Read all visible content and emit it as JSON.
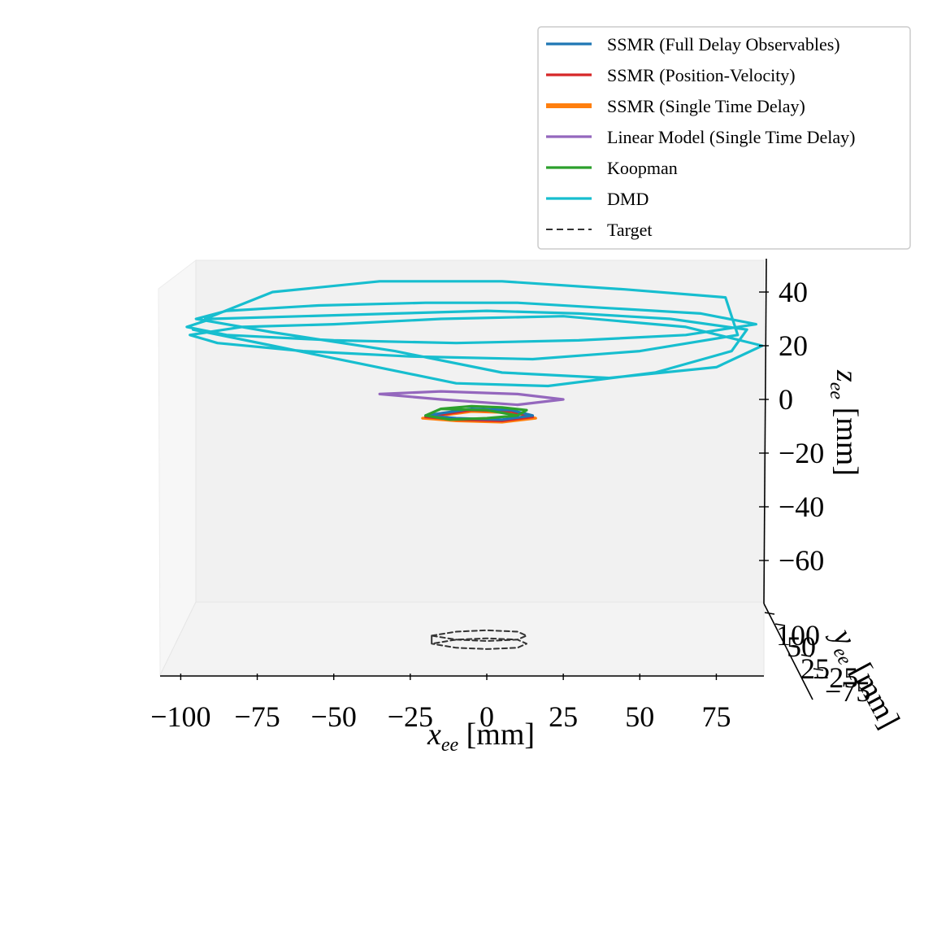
{
  "chart_data": {
    "type": "line",
    "projection": "3d",
    "axes": {
      "x": {
        "label": "x_ee [mm]",
        "ticks": [
          -100,
          -75,
          -50,
          -25,
          0,
          25,
          50,
          75
        ],
        "range": [
          -105,
          92
        ]
      },
      "y": {
        "label": "y_ee [mm]",
        "ticks": [
          -75,
          -25,
          25,
          50,
          100
        ],
        "range": [
          -100,
          110
        ]
      },
      "z": {
        "label": "z_ee [mm]",
        "ticks": [
          -60,
          -40,
          -20,
          0,
          20,
          40
        ],
        "range": [
          -80,
          48
        ]
      }
    },
    "legend": {
      "position": "top-right"
    },
    "series": [
      {
        "name": "SSMR (Full Delay Observables)",
        "color": "#1f77b4",
        "style": "solid",
        "x": [
          -20,
          -10,
          5,
          15,
          8,
          -5,
          -20
        ],
        "z": [
          -6,
          -7,
          -7.5,
          -6,
          -4,
          -3.5,
          -6
        ]
      },
      {
        "name": "SSMR (Position-Velocity)",
        "color": "#d62728",
        "style": "solid",
        "x": [
          -20,
          -10,
          5,
          15,
          8,
          -5,
          -20
        ],
        "z": [
          -6.5,
          -7.5,
          -8,
          -6.5,
          -4.5,
          -4,
          -6.5
        ]
      },
      {
        "name": "SSMR (Single Time Delay)",
        "color": "#ff7f0e",
        "style": "solid",
        "x": [
          -21,
          -10,
          5,
          16,
          9,
          -5,
          -21
        ],
        "z": [
          -7,
          -8,
          -8.5,
          -7,
          -5,
          -4.5,
          -7
        ]
      },
      {
        "name": "Linear Model (Single Time Delay)",
        "color": "#9467bd",
        "style": "solid",
        "x": [
          -35,
          -15,
          10,
          25,
          10,
          -15,
          -35
        ],
        "z": [
          2,
          0,
          -2,
          0,
          2,
          3,
          2
        ]
      },
      {
        "name": "Koopman",
        "color": "#2ca02c",
        "style": "solid",
        "x": [
          -20,
          -15,
          -5,
          5,
          13,
          10,
          0,
          -12,
          -20,
          -15,
          0,
          10
        ],
        "z": [
          -6,
          -3.5,
          -2.5,
          -3,
          -4,
          -6,
          -7,
          -7.5,
          -6,
          -3.5,
          -4,
          -6
        ]
      },
      {
        "name": "DMD",
        "color": "#17becf",
        "style": "solid",
        "x": [
          -96,
          -70,
          -40,
          -10,
          20,
          55,
          80,
          85,
          60,
          30,
          0,
          -30,
          -60,
          -90,
          -98,
          -85,
          -50,
          -10,
          30,
          65,
          88,
          70,
          40,
          10,
          -20,
          -55,
          -85,
          -95,
          -70,
          -30,
          5,
          40,
          75,
          90,
          65,
          25,
          -15,
          -50,
          -80,
          -97,
          -88,
          -60,
          -25,
          15,
          50,
          82,
          78,
          45,
          5,
          -35,
          -70,
          -92
        ],
        "z": [
          26,
          20,
          13,
          6,
          5,
          10,
          18,
          26,
          30,
          32,
          33,
          32,
          31,
          30,
          27,
          24,
          22,
          21,
          22,
          24,
          28,
          32,
          34,
          36,
          36,
          35,
          33,
          30,
          25,
          18,
          10,
          8,
          12,
          20,
          27,
          31,
          30,
          28,
          27,
          24,
          21,
          18,
          16,
          15,
          18,
          24,
          38,
          41,
          44,
          44,
          40,
          30
        ]
      },
      {
        "name": "Target",
        "color": "#333333",
        "style": "dashed",
        "x": [
          -18,
          -10,
          0,
          10,
          13,
          10,
          0,
          -10,
          -18,
          -18,
          -10,
          0,
          10,
          13,
          10,
          0,
          -10,
          -18,
          -18
        ],
        "z": [
          -88,
          -86.5,
          -86,
          -86.5,
          -88,
          -89.5,
          -90,
          -89.5,
          -88,
          -91,
          -89.5,
          -89,
          -89.5,
          -91,
          -92.5,
          -93,
          -92.5,
          -91,
          -88
        ]
      }
    ]
  }
}
